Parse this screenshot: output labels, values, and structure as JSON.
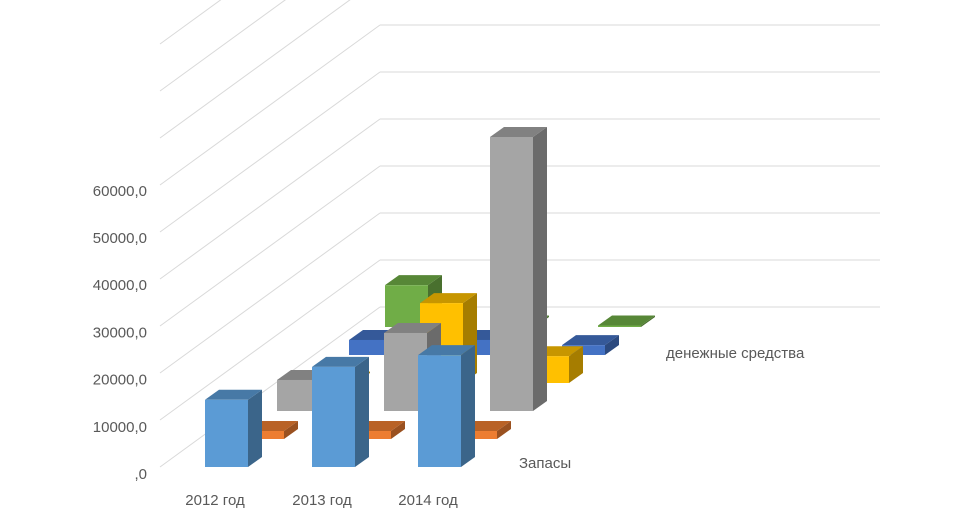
{
  "chart_data": {
    "type": "bar",
    "subtype": "3d-column",
    "categories": [
      "2012 год",
      "2013 год",
      "2014 год"
    ],
    "y_ticks": [
      ",0",
      "10000,0",
      "20000,0",
      "30000,0",
      "40000,0",
      "50000,0",
      "60000,0"
    ],
    "ylim": [
      0,
      60000
    ],
    "grid": true,
    "depth_labels": [
      "Запасы",
      "денежные средства"
    ],
    "series": [
      {
        "name": "Запасы",
        "color": "#5B9BD5",
        "values": [
          14300,
          21300,
          23800
        ]
      },
      {
        "name": "",
        "color": "#ED7D31",
        "values": [
          1700,
          1700,
          1700
        ]
      },
      {
        "name": "",
        "color": "#A5A5A5",
        "values": [
          6600,
          16600,
          58300
        ]
      },
      {
        "name": "",
        "color": "#FFC000",
        "values": [
          0,
          17000,
          5700
        ]
      },
      {
        "name": "денежные средства",
        "color": "#4472C4",
        "values": [
          3200,
          3200,
          2100
        ]
      },
      {
        "name": "",
        "color": "#70AD47",
        "values": [
          8900,
          100,
          300
        ]
      }
    ]
  }
}
